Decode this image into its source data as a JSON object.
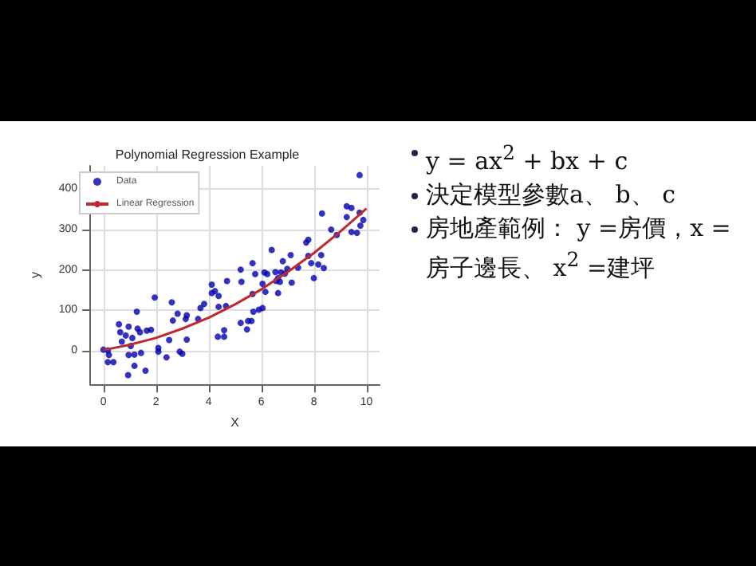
{
  "chart_data": {
    "type": "scatter",
    "title": "Polynomial Regression Example",
    "xlabel": "X",
    "ylabel": "y",
    "xlim": [
      -0.5,
      10.5
    ],
    "ylim": [
      -83,
      458
    ],
    "xticks": [
      0,
      2,
      4,
      6,
      8,
      10
    ],
    "yticks": [
      0,
      100,
      200,
      300,
      400
    ],
    "grid": true,
    "legend": "top left",
    "marker": "circle",
    "annotations": [
      "y = ax$^{2}$ + bx + c",
      "決定模型參數a、 b、 c",
      "房地產範例： y =房價，x = 房子邊長、 x$^{2}$ =建坪"
    ],
    "series": [
      {
        "name": "Data",
        "color": "#0000b0",
        "x": [
          0,
          0.17,
          0.21,
          0.17,
          0.38,
          0.59,
          0.64,
          0.7,
          0.85,
          0.96,
          0.96,
          0.94,
          1.04,
          1.1,
          1.18,
          1.18,
          1.27,
          1.3,
          1.39,
          1.43,
          1.6,
          1.65,
          1.81,
          1.95,
          2.09,
          2.09,
          2.4,
          2.5,
          2.6,
          2.64,
          2.82,
          2.9,
          3.0,
          3.17,
          3.17,
          3.13,
          3.6,
          3.69,
          3.83,
          4.12,
          4.12,
          4.24,
          4.38,
          4.38,
          4.35,
          4.59,
          4.59,
          4.66,
          4.7,
          5.22,
          5.25,
          5.22,
          5.46,
          5.5,
          5.63,
          5.67,
          5.67,
          5.7,
          5.77,
          5.91,
          6.05,
          6.05,
          6.12,
          6.16,
          6.23,
          6.4,
          6.54,
          6.57,
          6.64,
          6.64,
          6.71,
          6.75,
          6.82,
          6.9,
          6.99,
          7.12,
          7.16,
          7.4,
          7.71,
          7.79,
          7.79,
          7.9,
          8.0,
          8.17,
          8.28,
          8.31,
          8.38,
          8.66,
          8.87,
          9.25,
          9.25,
          9.43,
          9.43,
          9.64,
          9.74,
          9.74,
          9.77,
          9.88
        ],
        "values": [
          3,
          1,
          -10,
          -28,
          -28,
          66,
          46,
          23,
          38,
          60,
          -10,
          -60,
          12,
          32,
          -37,
          -9,
          97,
          55,
          46,
          -5,
          -49,
          50,
          52,
          132,
          7,
          -2,
          -16,
          27,
          120,
          75,
          92,
          -2,
          -7,
          88,
          28,
          79,
          79,
          106,
          116,
          164,
          143,
          148,
          136,
          109,
          35,
          51,
          35,
          111,
          173,
          201,
          171,
          69,
          53,
          74,
          74,
          141,
          217,
          97,
          190,
          102,
          106,
          166,
          194,
          146,
          190,
          250,
          195,
          173,
          180,
          143,
          171,
          194,
          222,
          191,
          203,
          237,
          169,
          206,
          268,
          275,
          235,
          217,
          180,
          214,
          237,
          340,
          205,
          300,
          287,
          358,
          331,
          354,
          294,
          292,
          342,
          435,
          310,
          324
        ]
      },
      {
        "name": "Linear Regression",
        "type": "line",
        "color": "#c0282d",
        "marker": "none",
        "x": [
          0,
          1,
          2,
          3,
          4,
          5,
          6,
          7,
          8,
          9,
          10
        ],
        "values": [
          2,
          15,
          32,
          55,
          82,
          115,
          152,
          195,
          242,
          295,
          352
        ]
      }
    ]
  }
}
